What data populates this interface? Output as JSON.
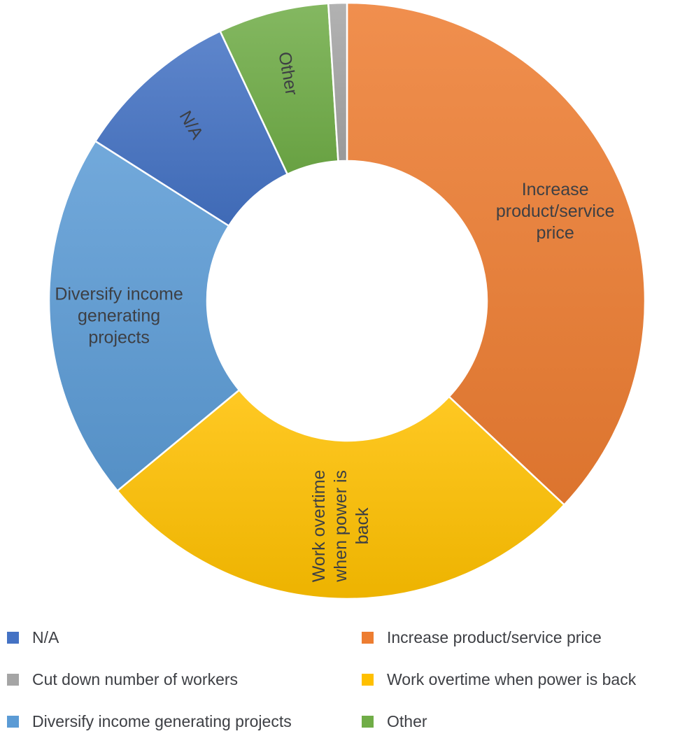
{
  "chart_data": {
    "type": "pie",
    "donut": true,
    "title": "",
    "categories": [
      "Increase product/service price",
      "Work overtime when power is back",
      "Diversify income generating projects",
      "N/A",
      "Other",
      "Cut down number of workers"
    ],
    "values": [
      37,
      27,
      20,
      9,
      6,
      1
    ],
    "unit": "%",
    "slice_labels": [
      [
        "Increase",
        "product/service",
        "price"
      ],
      [
        "Work overtime",
        "when power is",
        "back"
      ],
      [
        "Diversify income",
        "generating",
        "projects"
      ],
      [
        "N/A"
      ],
      [
        "Other"
      ],
      []
    ],
    "colors": {
      "Increase product/service price": "#ED7D31",
      "Work overtime when power is back": "#FFC000",
      "Diversify income generating projects": "#5B9BD5",
      "N/A": "#4472C4",
      "Other": "#70AD47",
      "Cut down number of workers": "#A5A5A5"
    },
    "legend": {
      "position": "bottom",
      "entries": [
        "N/A",
        "Increase product/service price",
        "Cut down number of workers",
        "Work overtime when power is back",
        "Diversify income generating projects",
        "Other"
      ]
    }
  }
}
